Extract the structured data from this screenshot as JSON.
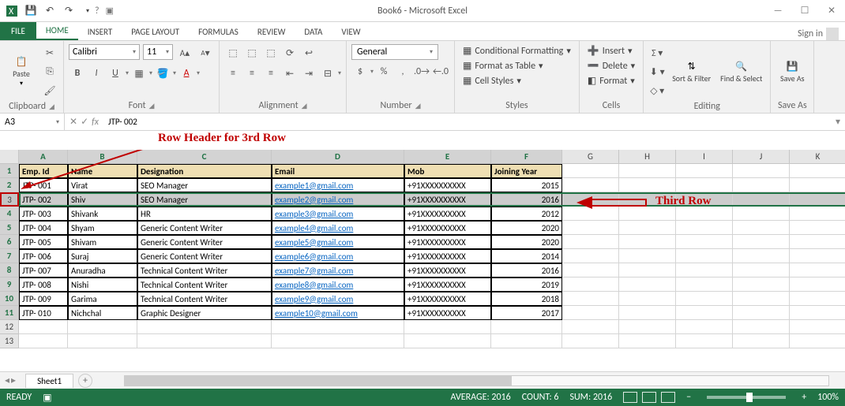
{
  "titlebar": {
    "title": "Book6 - Microsoft Excel"
  },
  "tabs": {
    "file": "FILE",
    "items": [
      "HOME",
      "INSERT",
      "PAGE LAYOUT",
      "FORMULAS",
      "REVIEW",
      "DATA",
      "VIEW"
    ],
    "active": 0,
    "signin": "Sign in"
  },
  "ribbon": {
    "clipboard": {
      "label": "Clipboard",
      "paste": "Paste"
    },
    "font": {
      "label": "Font",
      "name": "Calibri",
      "size": "11",
      "bold": "B",
      "italic": "I",
      "underline": "U"
    },
    "alignment": {
      "label": "Alignment"
    },
    "number": {
      "label": "Number",
      "format": "General"
    },
    "styles": {
      "label": "Styles",
      "cond": "Conditional Formatting",
      "table": "Format as Table",
      "cell": "Cell Styles"
    },
    "cells": {
      "label": "Cells",
      "insert": "Insert",
      "delete": "Delete",
      "format": "Format"
    },
    "editing": {
      "label": "Editing",
      "sort": "Sort & Filter",
      "find": "Find & Select"
    },
    "saveas": {
      "label": "Save As",
      "btn": "Save As"
    }
  },
  "formula": {
    "namebox": "A3",
    "value": "JTP- 002",
    "fx": "fx"
  },
  "annotations": {
    "rowhdr": "Row Header for 3rd Row",
    "third": "Third Row",
    "arrow_color": "#c00000"
  },
  "grid": {
    "cols": [
      "A",
      "B",
      "C",
      "D",
      "E",
      "F",
      "G",
      "H",
      "I",
      "J",
      "K"
    ],
    "header_bg": "#efdfb3",
    "selected_row": 3,
    "headers": [
      "Emp. Id",
      "Name",
      "Designation",
      "Email",
      "Mob",
      "Joining Year"
    ],
    "rows": [
      {
        "id": "JTP- 001",
        "name": "Virat",
        "des": "SEO Manager",
        "email": "example1@gmail.com",
        "mob": "+91XXXXXXXXXX",
        "yr": "2015"
      },
      {
        "id": "JTP- 002",
        "name": "Shiv",
        "des": "SEO Manager",
        "email": "example2@gmail.com",
        "mob": "+91XXXXXXXXXX",
        "yr": "2016"
      },
      {
        "id": "JTP- 003",
        "name": "Shivank",
        "des": "HR",
        "email": "example3@gmail.com",
        "mob": "+91XXXXXXXXXX",
        "yr": "2012"
      },
      {
        "id": "JTP- 004",
        "name": "Shyam",
        "des": "Generic Content Writer",
        "email": "example4@gmail.com",
        "mob": "+91XXXXXXXXXX",
        "yr": "2020"
      },
      {
        "id": "JTP- 005",
        "name": "Shivam",
        "des": "Generic Content Writer",
        "email": "example5@gmail.com",
        "mob": "+91XXXXXXXXXX",
        "yr": "2020"
      },
      {
        "id": "JTP- 006",
        "name": "Suraj",
        "des": "Generic Content Writer",
        "email": "example6@gmail.com",
        "mob": "+91XXXXXXXXXX",
        "yr": "2014"
      },
      {
        "id": "JTP- 007",
        "name": "Anuradha",
        "des": "Technical Content Writer",
        "email": "example7@gmail.com",
        "mob": "+91XXXXXXXXXX",
        "yr": "2016"
      },
      {
        "id": "JTP- 008",
        "name": "Nishi",
        "des": "Technical Content Writer",
        "email": "example8@gmail.com",
        "mob": "+91XXXXXXXXXX",
        "yr": "2019"
      },
      {
        "id": "JTP- 009",
        "name": "Garima",
        "des": "Technical Content Writer",
        "email": "example9@gmail.com",
        "mob": "+91XXXXXXXXXX",
        "yr": "2018"
      },
      {
        "id": "JTP- 010",
        "name": "Nichchal",
        "des": "Graphic Designer",
        "email": "example10@gmail.com",
        "mob": "+91XXXXXXXXXX",
        "yr": "2017"
      }
    ]
  },
  "sheet": {
    "name": "Sheet1"
  },
  "status": {
    "ready": "READY",
    "avg": "AVERAGE: 2016",
    "count": "COUNT: 6",
    "sum": "SUM: 2016",
    "zoom": "100%"
  },
  "colors": {
    "accent": "#217346",
    "link": "#0563c1",
    "hdr_fill": "#efdfb3"
  }
}
